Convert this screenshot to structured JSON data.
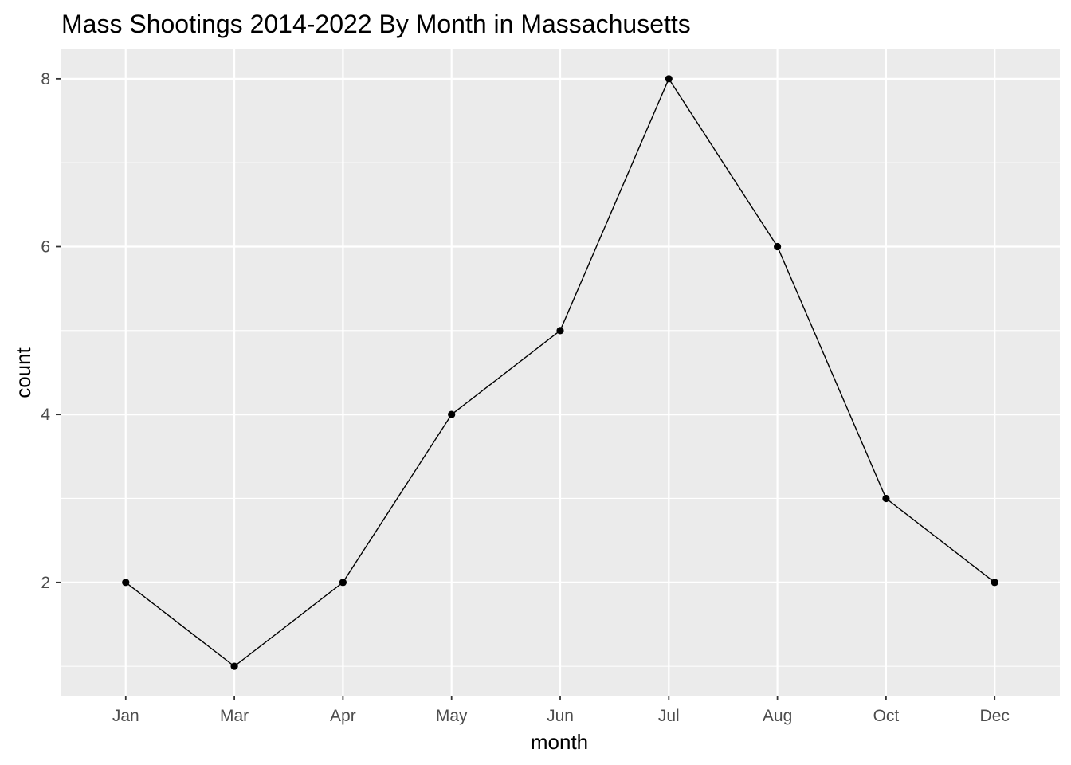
{
  "chart_data": {
    "type": "line",
    "title": "Mass Shootings 2014-2022 By Month in Massachusetts",
    "xlabel": "month",
    "ylabel": "count",
    "categories": [
      "Jan",
      "Mar",
      "Apr",
      "May",
      "Jun",
      "Jul",
      "Aug",
      "Oct",
      "Dec"
    ],
    "series": [
      {
        "values": [
          2,
          1,
          2,
          4,
          5,
          8,
          6,
          3,
          2
        ]
      }
    ],
    "ylim": [
      0.65,
      8.35
    ],
    "y_ticks": [
      2,
      4,
      6,
      8
    ],
    "y_tick_labels": [
      "2",
      "4",
      "6",
      "8"
    ],
    "y_minor_ticks": [
      1,
      3,
      5,
      7
    ],
    "grid": true,
    "colors": {
      "panel_background": "#ebebeb",
      "grid_line": "#ffffff",
      "series_line": "#000000",
      "tick_mark": "#333333"
    }
  }
}
